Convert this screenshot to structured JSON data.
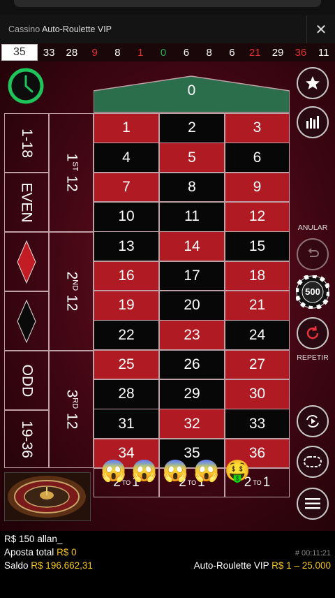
{
  "header": {
    "app": "Cassino",
    "title": "Auto-Roulette VIP",
    "close_icon": "close-icon"
  },
  "history": [
    {
      "n": "35",
      "c": "first"
    },
    {
      "n": "33",
      "c": "blk"
    },
    {
      "n": "28",
      "c": "blk"
    },
    {
      "n": "9",
      "c": "red"
    },
    {
      "n": "8",
      "c": "blk"
    },
    {
      "n": "1",
      "c": "red"
    },
    {
      "n": "0",
      "c": "green"
    },
    {
      "n": "6",
      "c": "blk"
    },
    {
      "n": "8",
      "c": "blk"
    },
    {
      "n": "6",
      "c": "blk"
    },
    {
      "n": "21",
      "c": "red"
    },
    {
      "n": "29",
      "c": "blk"
    },
    {
      "n": "36",
      "c": "red"
    },
    {
      "n": "11",
      "c": "blk"
    }
  ],
  "board": {
    "zero": "0",
    "numbers": [
      [
        "1",
        "red"
      ],
      [
        "2",
        "black"
      ],
      [
        "3",
        "red"
      ],
      [
        "4",
        "black"
      ],
      [
        "5",
        "red"
      ],
      [
        "6",
        "black"
      ],
      [
        "7",
        "red"
      ],
      [
        "8",
        "black"
      ],
      [
        "9",
        "red"
      ],
      [
        "10",
        "black"
      ],
      [
        "11",
        "black"
      ],
      [
        "12",
        "red"
      ],
      [
        "13",
        "black"
      ],
      [
        "14",
        "red"
      ],
      [
        "15",
        "black"
      ],
      [
        "16",
        "red"
      ],
      [
        "17",
        "black"
      ],
      [
        "18",
        "red"
      ],
      [
        "19",
        "red"
      ],
      [
        "20",
        "black"
      ],
      [
        "21",
        "red"
      ],
      [
        "22",
        "black"
      ],
      [
        "23",
        "red"
      ],
      [
        "24",
        "black"
      ],
      [
        "25",
        "red"
      ],
      [
        "26",
        "black"
      ],
      [
        "27",
        "red"
      ],
      [
        "28",
        "black"
      ],
      [
        "29",
        "black"
      ],
      [
        "30",
        "red"
      ],
      [
        "31",
        "black"
      ],
      [
        "32",
        "red"
      ],
      [
        "33",
        "black"
      ],
      [
        "34",
        "red"
      ],
      [
        "35",
        "black"
      ],
      [
        "36",
        "red"
      ]
    ],
    "outside": {
      "low": "1-18",
      "even": "EVEN",
      "odd": "ODD",
      "high": "19-36"
    },
    "dozens": [
      {
        "n": "1",
        "s": "ST",
        "t": "12"
      },
      {
        "n": "2",
        "s": "ND",
        "t": "12"
      },
      {
        "n": "3",
        "s": "RD",
        "t": "12"
      }
    ],
    "columns": [
      {
        "a": "2",
        "s": "TO",
        "b": "1"
      },
      {
        "a": "2",
        "s": "TO",
        "b": "1"
      },
      {
        "a": "2",
        "s": "TO",
        "b": "1"
      }
    ]
  },
  "controls": {
    "anular": "ANULAR",
    "repetir": "REPETIR",
    "chip": "500"
  },
  "emojis": [
    "😱",
    "😱",
    "😱",
    "😱",
    "🤑"
  ],
  "footer": {
    "chat_amount": "R$ 150",
    "chat_user": "allan_",
    "bet_label": "Aposta total",
    "bet_value": "R$ 0",
    "balance_label": "Saldo",
    "balance_value": "R$ 196.662,31",
    "round_id": "# 00:11:21",
    "table_name": "Auto-Roulette VIP",
    "limits": "R$ 1 – 25.000"
  },
  "colors": {
    "red": "#b01a22",
    "black": "#070707",
    "green": "#2a6e4c",
    "gold": "#f5c518"
  }
}
